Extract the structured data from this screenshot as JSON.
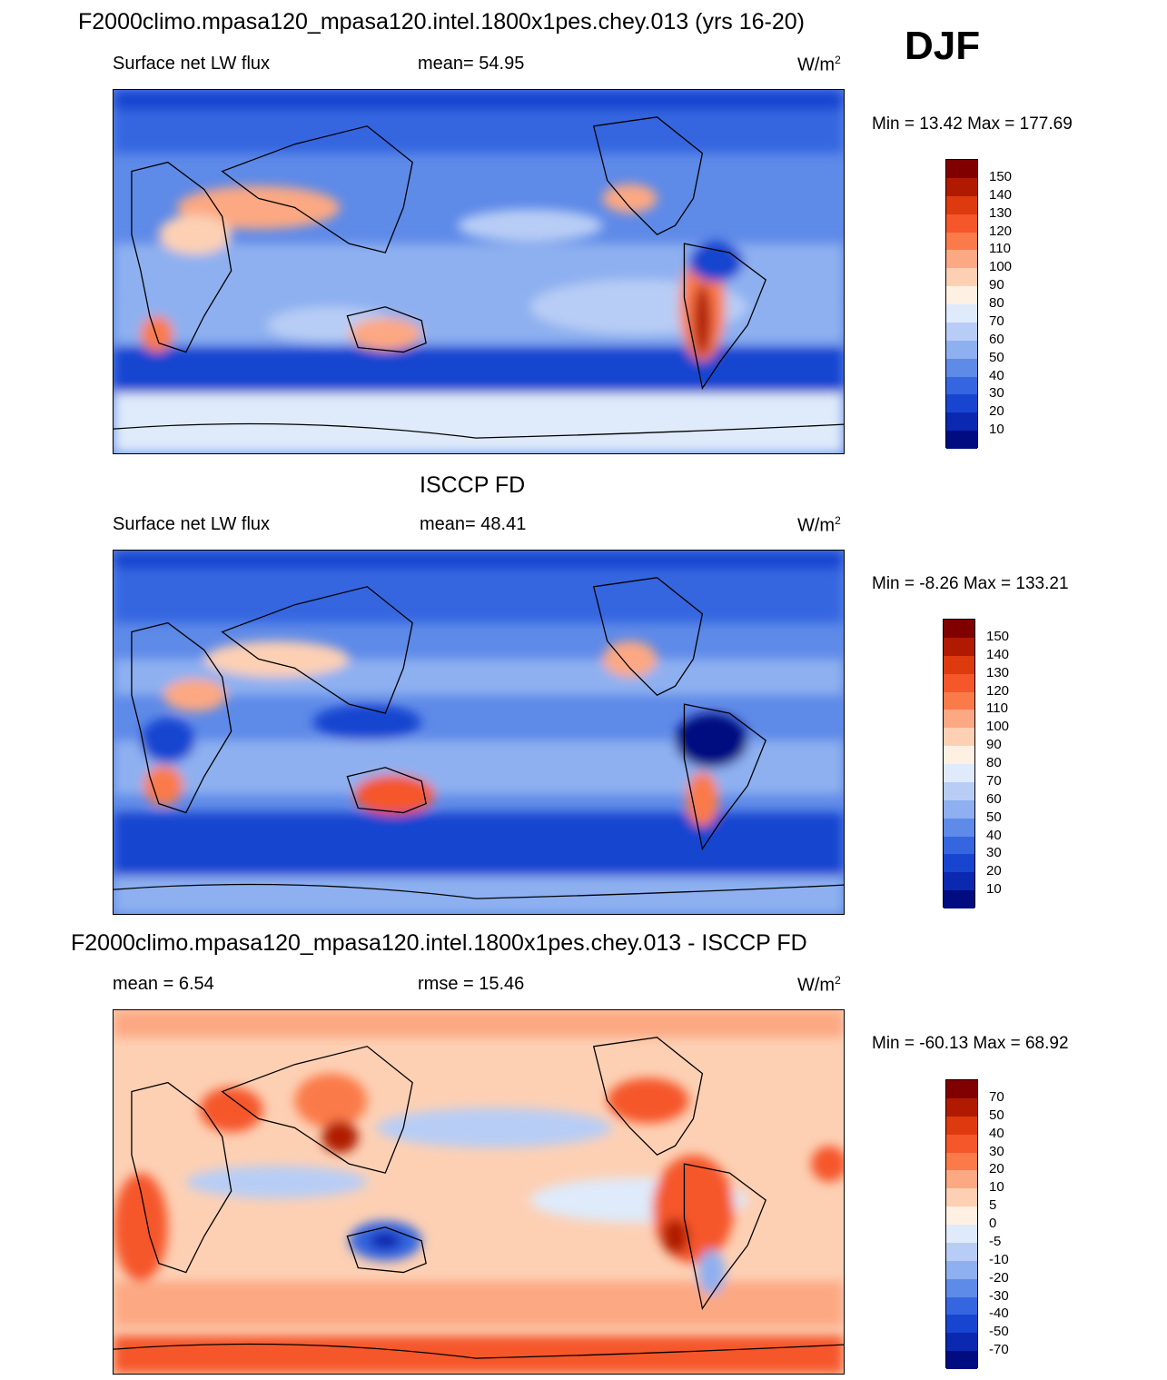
{
  "header": {
    "title": "F2000climo.mpasa120_mpasa120.intel.1800x1pes.chey.013 (yrs 16-20)",
    "season": "DJF"
  },
  "panels": [
    {
      "id": "model",
      "title": "",
      "left_label": "Surface net LW flux",
      "center_label": "mean=  54.95",
      "units_base": "W/m",
      "units_exp": "2",
      "minmax": "Min =  13.42 Max = 177.69",
      "colorbar_labels": [
        "150",
        "140",
        "130",
        "120",
        "110",
        "100",
        "90",
        "80",
        "70",
        "60",
        "50",
        "40",
        "30",
        "20",
        "10"
      ],
      "colors": [
        "#800000",
        "#b01a00",
        "#dd3a10",
        "#f5562a",
        "#fb7a4a",
        "#fca882",
        "#fdd0b4",
        "#fff0e4",
        "#dfeafa",
        "#b8cdf5",
        "#8eb0f0",
        "#5e8ae8",
        "#3566e0",
        "#1845d0",
        "#0a28b0",
        "#000c80"
      ]
    },
    {
      "id": "obs",
      "title": "ISCCP FD",
      "left_label": "Surface net LW flux",
      "center_label": "mean=  48.41",
      "units_base": "W/m",
      "units_exp": "2",
      "minmax": "Min =  -8.26 Max = 133.21",
      "colorbar_labels": [
        "150",
        "140",
        "130",
        "120",
        "110",
        "100",
        "90",
        "80",
        "70",
        "60",
        "50",
        "40",
        "30",
        "20",
        "10"
      ],
      "colors": [
        "#800000",
        "#b01a00",
        "#dd3a10",
        "#f5562a",
        "#fb7a4a",
        "#fca882",
        "#fdd0b4",
        "#fff0e4",
        "#dfeafa",
        "#b8cdf5",
        "#8eb0f0",
        "#5e8ae8",
        "#3566e0",
        "#1845d0",
        "#0a28b0",
        "#000c80"
      ]
    },
    {
      "id": "diff",
      "title": "F2000climo.mpasa120_mpasa120.intel.1800x1pes.chey.013 - ISCCP FD",
      "left_label": "mean =   6.54",
      "center_label": "rmse =  15.46",
      "units_base": "W/m",
      "units_exp": "2",
      "minmax": "Min = -60.13 Max =  68.92",
      "colorbar_labels": [
        "70",
        "50",
        "40",
        "30",
        "20",
        "10",
        "5",
        "0",
        "-5",
        "-10",
        "-20",
        "-30",
        "-40",
        "-50",
        "-70"
      ],
      "colors": [
        "#800000",
        "#b01a00",
        "#dd3a10",
        "#f5562a",
        "#fb7a4a",
        "#fca882",
        "#fdd0b4",
        "#fff0e4",
        "#dfeafa",
        "#b8cdf5",
        "#8eb0f0",
        "#5e8ae8",
        "#3566e0",
        "#1845d0",
        "#0a28b0",
        "#000c80"
      ]
    }
  ]
}
